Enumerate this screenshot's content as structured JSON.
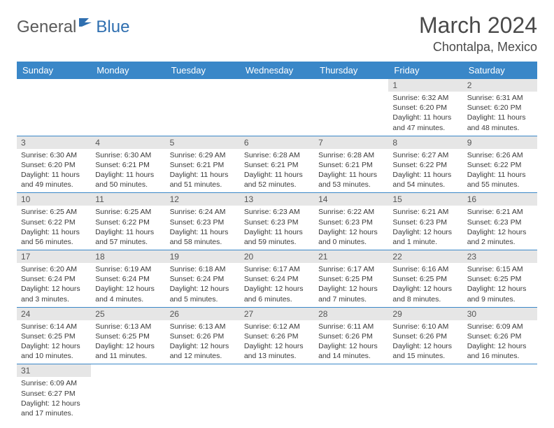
{
  "logo": {
    "general": "General",
    "blue": "Blue"
  },
  "title": "March 2024",
  "location": "Chontalpa, Mexico",
  "day_headers": [
    "Sunday",
    "Monday",
    "Tuesday",
    "Wednesday",
    "Thursday",
    "Friday",
    "Saturday"
  ],
  "header_bg": "#3a87c8",
  "header_fg": "#ffffff",
  "daynum_bg": "#e6e6e6",
  "cell_border": "#3a87c8",
  "body_fontsize": 10.5,
  "weeks": [
    [
      null,
      null,
      null,
      null,
      null,
      {
        "n": "1",
        "sunrise": "Sunrise: 6:32 AM",
        "sunset": "Sunset: 6:20 PM",
        "daylight": "Daylight: 11 hours and 47 minutes."
      },
      {
        "n": "2",
        "sunrise": "Sunrise: 6:31 AM",
        "sunset": "Sunset: 6:20 PM",
        "daylight": "Daylight: 11 hours and 48 minutes."
      }
    ],
    [
      {
        "n": "3",
        "sunrise": "Sunrise: 6:30 AM",
        "sunset": "Sunset: 6:20 PM",
        "daylight": "Daylight: 11 hours and 49 minutes."
      },
      {
        "n": "4",
        "sunrise": "Sunrise: 6:30 AM",
        "sunset": "Sunset: 6:21 PM",
        "daylight": "Daylight: 11 hours and 50 minutes."
      },
      {
        "n": "5",
        "sunrise": "Sunrise: 6:29 AM",
        "sunset": "Sunset: 6:21 PM",
        "daylight": "Daylight: 11 hours and 51 minutes."
      },
      {
        "n": "6",
        "sunrise": "Sunrise: 6:28 AM",
        "sunset": "Sunset: 6:21 PM",
        "daylight": "Daylight: 11 hours and 52 minutes."
      },
      {
        "n": "7",
        "sunrise": "Sunrise: 6:28 AM",
        "sunset": "Sunset: 6:21 PM",
        "daylight": "Daylight: 11 hours and 53 minutes."
      },
      {
        "n": "8",
        "sunrise": "Sunrise: 6:27 AM",
        "sunset": "Sunset: 6:22 PM",
        "daylight": "Daylight: 11 hours and 54 minutes."
      },
      {
        "n": "9",
        "sunrise": "Sunrise: 6:26 AM",
        "sunset": "Sunset: 6:22 PM",
        "daylight": "Daylight: 11 hours and 55 minutes."
      }
    ],
    [
      {
        "n": "10",
        "sunrise": "Sunrise: 6:25 AM",
        "sunset": "Sunset: 6:22 PM",
        "daylight": "Daylight: 11 hours and 56 minutes."
      },
      {
        "n": "11",
        "sunrise": "Sunrise: 6:25 AM",
        "sunset": "Sunset: 6:22 PM",
        "daylight": "Daylight: 11 hours and 57 minutes."
      },
      {
        "n": "12",
        "sunrise": "Sunrise: 6:24 AM",
        "sunset": "Sunset: 6:23 PM",
        "daylight": "Daylight: 11 hours and 58 minutes."
      },
      {
        "n": "13",
        "sunrise": "Sunrise: 6:23 AM",
        "sunset": "Sunset: 6:23 PM",
        "daylight": "Daylight: 11 hours and 59 minutes."
      },
      {
        "n": "14",
        "sunrise": "Sunrise: 6:22 AM",
        "sunset": "Sunset: 6:23 PM",
        "daylight": "Daylight: 12 hours and 0 minutes."
      },
      {
        "n": "15",
        "sunrise": "Sunrise: 6:21 AM",
        "sunset": "Sunset: 6:23 PM",
        "daylight": "Daylight: 12 hours and 1 minute."
      },
      {
        "n": "16",
        "sunrise": "Sunrise: 6:21 AM",
        "sunset": "Sunset: 6:23 PM",
        "daylight": "Daylight: 12 hours and 2 minutes."
      }
    ],
    [
      {
        "n": "17",
        "sunrise": "Sunrise: 6:20 AM",
        "sunset": "Sunset: 6:24 PM",
        "daylight": "Daylight: 12 hours and 3 minutes."
      },
      {
        "n": "18",
        "sunrise": "Sunrise: 6:19 AM",
        "sunset": "Sunset: 6:24 PM",
        "daylight": "Daylight: 12 hours and 4 minutes."
      },
      {
        "n": "19",
        "sunrise": "Sunrise: 6:18 AM",
        "sunset": "Sunset: 6:24 PM",
        "daylight": "Daylight: 12 hours and 5 minutes."
      },
      {
        "n": "20",
        "sunrise": "Sunrise: 6:17 AM",
        "sunset": "Sunset: 6:24 PM",
        "daylight": "Daylight: 12 hours and 6 minutes."
      },
      {
        "n": "21",
        "sunrise": "Sunrise: 6:17 AM",
        "sunset": "Sunset: 6:25 PM",
        "daylight": "Daylight: 12 hours and 7 minutes."
      },
      {
        "n": "22",
        "sunrise": "Sunrise: 6:16 AM",
        "sunset": "Sunset: 6:25 PM",
        "daylight": "Daylight: 12 hours and 8 minutes."
      },
      {
        "n": "23",
        "sunrise": "Sunrise: 6:15 AM",
        "sunset": "Sunset: 6:25 PM",
        "daylight": "Daylight: 12 hours and 9 minutes."
      }
    ],
    [
      {
        "n": "24",
        "sunrise": "Sunrise: 6:14 AM",
        "sunset": "Sunset: 6:25 PM",
        "daylight": "Daylight: 12 hours and 10 minutes."
      },
      {
        "n": "25",
        "sunrise": "Sunrise: 6:13 AM",
        "sunset": "Sunset: 6:25 PM",
        "daylight": "Daylight: 12 hours and 11 minutes."
      },
      {
        "n": "26",
        "sunrise": "Sunrise: 6:13 AM",
        "sunset": "Sunset: 6:26 PM",
        "daylight": "Daylight: 12 hours and 12 minutes."
      },
      {
        "n": "27",
        "sunrise": "Sunrise: 6:12 AM",
        "sunset": "Sunset: 6:26 PM",
        "daylight": "Daylight: 12 hours and 13 minutes."
      },
      {
        "n": "28",
        "sunrise": "Sunrise: 6:11 AM",
        "sunset": "Sunset: 6:26 PM",
        "daylight": "Daylight: 12 hours and 14 minutes."
      },
      {
        "n": "29",
        "sunrise": "Sunrise: 6:10 AM",
        "sunset": "Sunset: 6:26 PM",
        "daylight": "Daylight: 12 hours and 15 minutes."
      },
      {
        "n": "30",
        "sunrise": "Sunrise: 6:09 AM",
        "sunset": "Sunset: 6:26 PM",
        "daylight": "Daylight: 12 hours and 16 minutes."
      }
    ],
    [
      {
        "n": "31",
        "sunrise": "Sunrise: 6:09 AM",
        "sunset": "Sunset: 6:27 PM",
        "daylight": "Daylight: 12 hours and 17 minutes."
      },
      null,
      null,
      null,
      null,
      null,
      null
    ]
  ]
}
